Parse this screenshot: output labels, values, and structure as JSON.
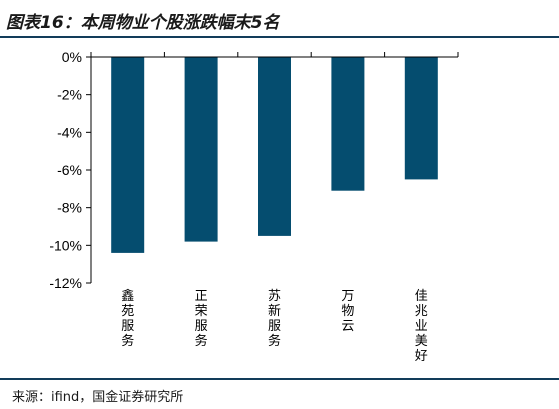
{
  "header": {
    "title": "图表16：本周物业个股涨跌幅末5名"
  },
  "footer": {
    "source": "来源：ifind，国金证券研究所"
  },
  "colors": {
    "bar": "#054d6f",
    "rule": "#123c5a"
  },
  "chart_data": {
    "type": "bar",
    "categories": [
      "鑫苑服务",
      "正荣服务",
      "苏新服务",
      "万物云",
      "佳兆业美好"
    ],
    "values": [
      -10.4,
      -9.8,
      -9.5,
      -7.1,
      -6.5
    ],
    "y_ticks": [
      "0%",
      "-2%",
      "-4%",
      "-6%",
      "-8%",
      "-10%",
      "-12%"
    ],
    "y_tick_values": [
      0,
      -2,
      -4,
      -6,
      -8,
      -10,
      -12
    ],
    "ylim": [
      -12,
      0
    ],
    "grid": false,
    "legend": "none"
  }
}
